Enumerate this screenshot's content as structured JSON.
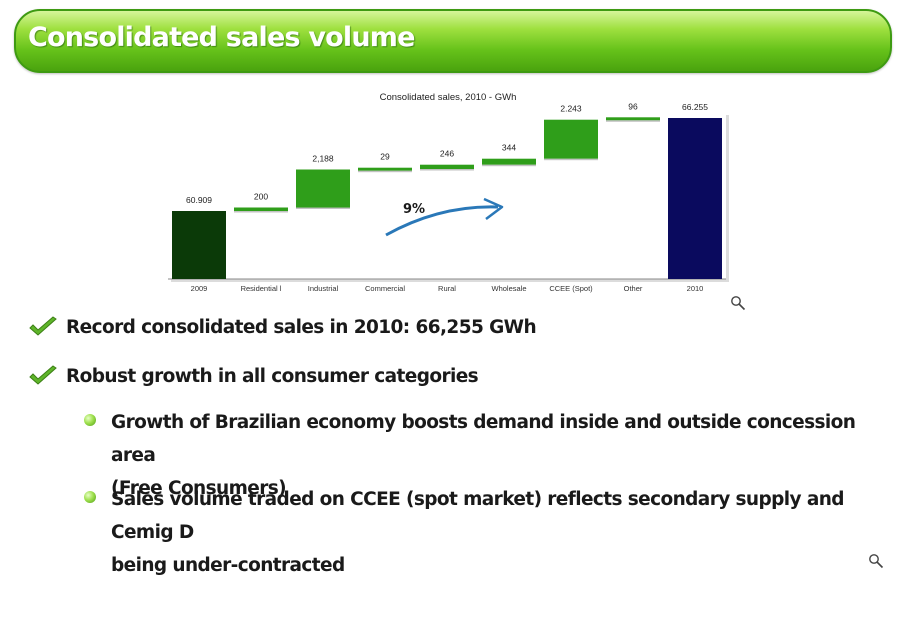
{
  "header": {
    "title": "Consolidated sales volume"
  },
  "chart_data": {
    "type": "bar",
    "title": "Consolidated sales, 2010 - GWh",
    "categories": [
      "2009",
      "Residential l",
      "Industrial",
      "Commercial",
      "Rural",
      "Wholesale",
      "CCEE (Spot)",
      "Other",
      "2010"
    ],
    "value_labels": [
      "60.909",
      "200",
      "2,188",
      "29",
      "246",
      "344",
      "2.243",
      "96",
      "66.255"
    ],
    "values": [
      60909,
      200,
      2188,
      29,
      246,
      344,
      2243,
      96,
      66255
    ],
    "bar_roles": [
      "total",
      "increment",
      "increment",
      "increment",
      "increment",
      "increment",
      "increment",
      "increment",
      "total"
    ],
    "growth_annotation": "9%",
    "xlabel": "",
    "ylabel": "",
    "grid": false,
    "colors": {
      "start_total": "#0b3a08",
      "increments": "#2f9e1a",
      "end_total": "#0a0a5e",
      "arrow": "#2a78b8"
    }
  },
  "bullets": [
    {
      "text": "Record consolidated sales in 2010: 66,255 GWh",
      "icon": "checkmark-icon"
    },
    {
      "text": "Robust growth in all consumer categories",
      "icon": "checkmark-icon",
      "sub": [
        {
          "line1": "Growth of Brazilian economy boosts demand inside and outside concession area",
          "line2": "(Free Consumers)"
        },
        {
          "line1": "Sales volume traded on CCEE (spot market) reflects secondary supply and Cemig D",
          "line2": "being under-contracted"
        }
      ]
    }
  ],
  "icons": [
    "magnifier-icon",
    "checkmark-icon",
    "bullet-dot-icon"
  ]
}
